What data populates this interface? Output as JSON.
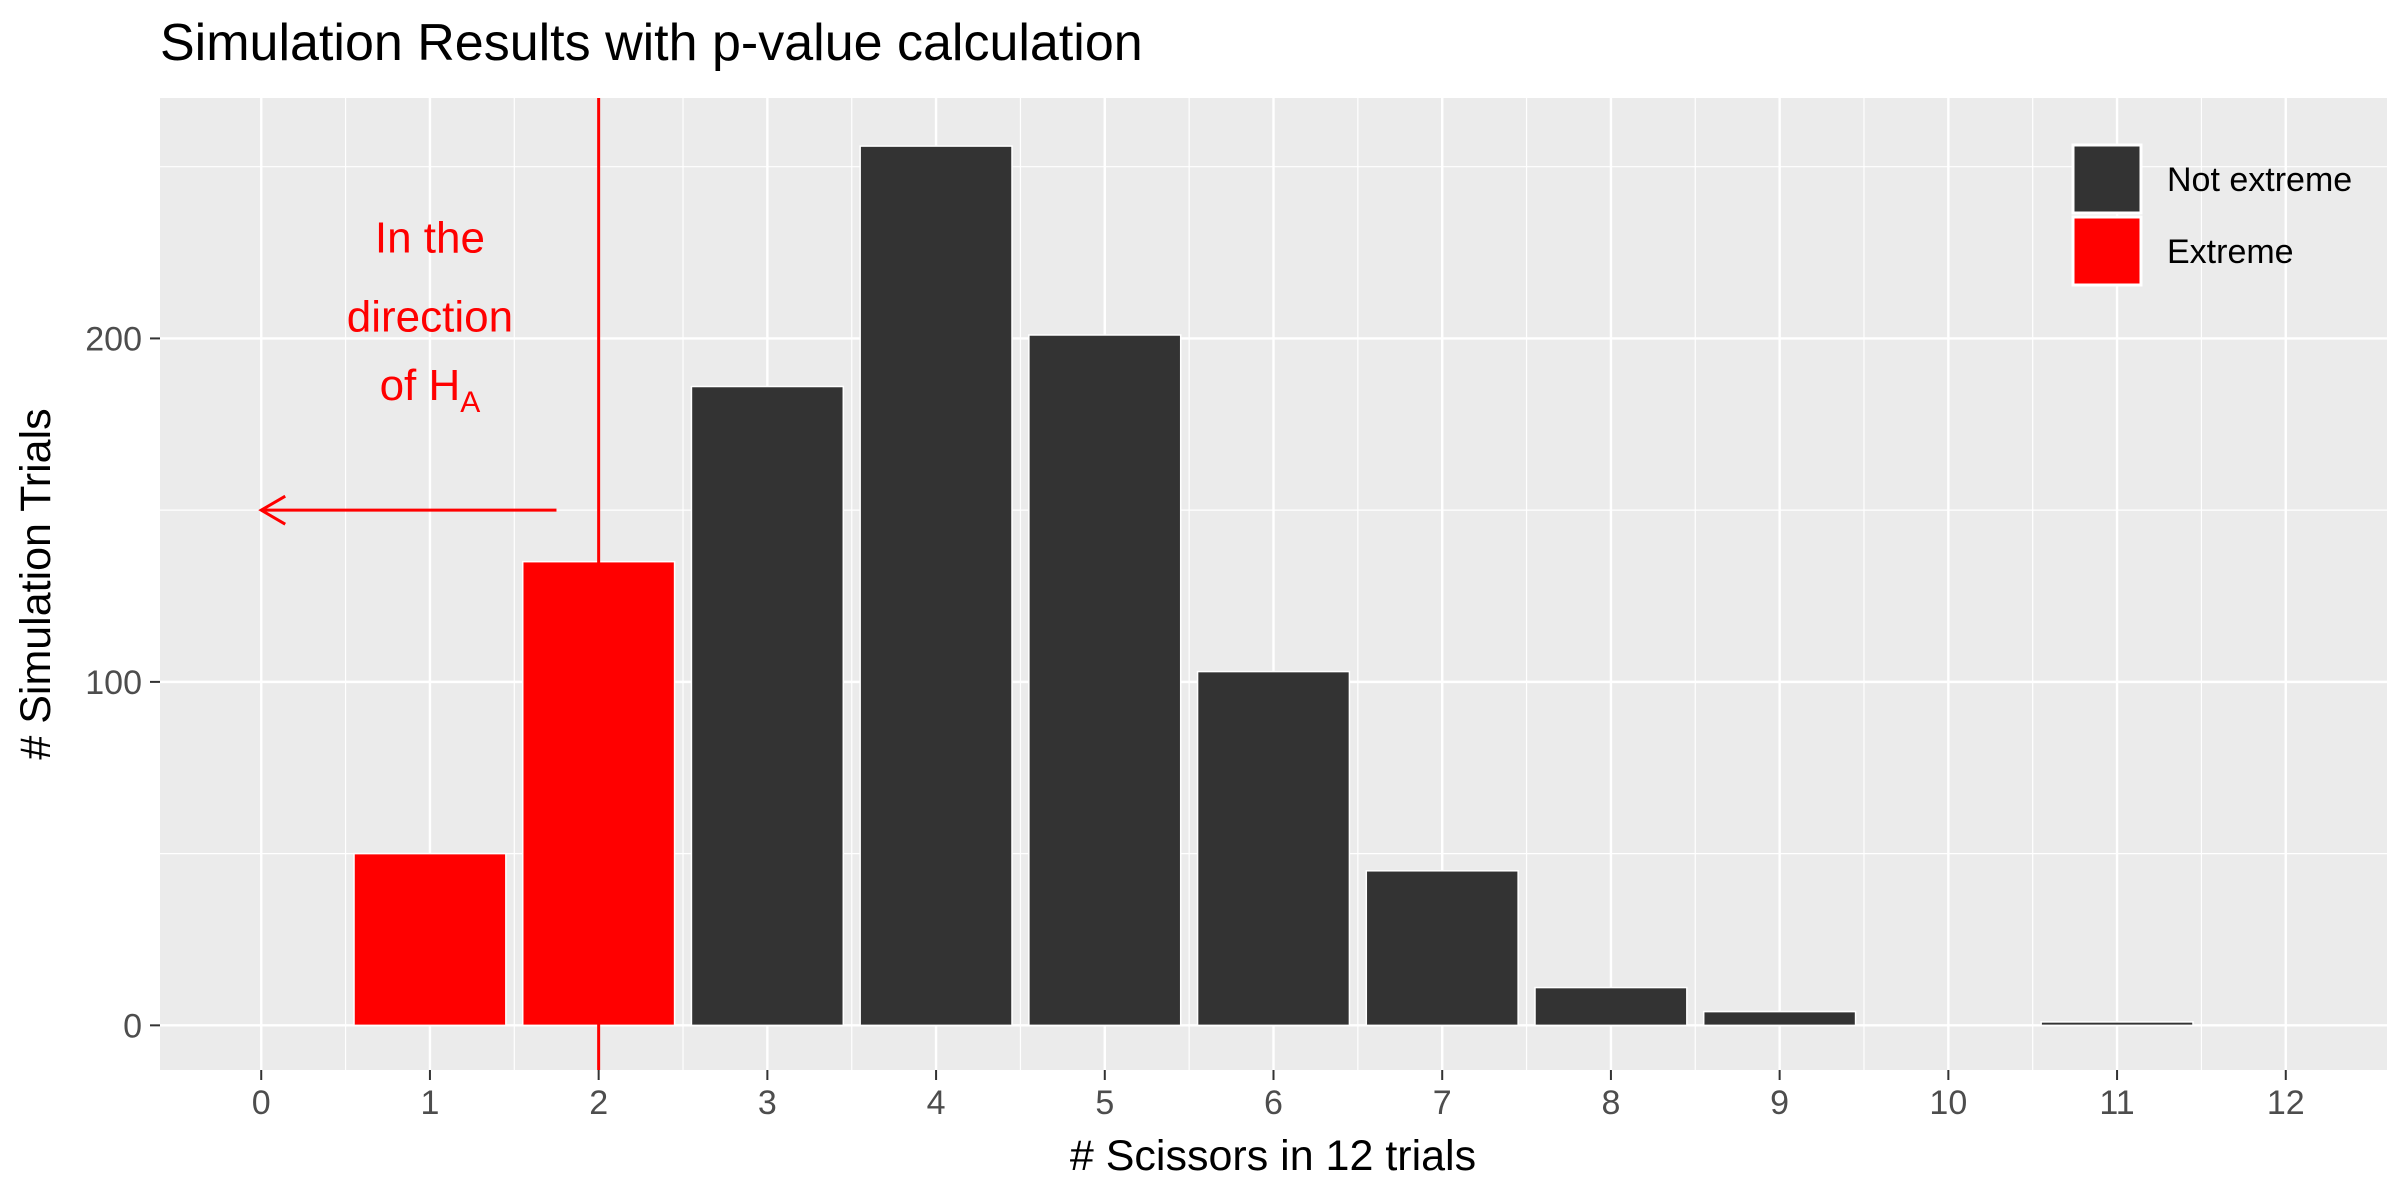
{
  "colors": {
    "panel_bg": "#ebebeb",
    "grid": "#ffffff",
    "not_extreme": "#333333",
    "extreme": "#ff0000",
    "annotation": "#ff0000"
  },
  "chart_data": {
    "type": "bar",
    "title": "Simulation Results with p-value calculation",
    "xlabel": "# Scissors in 12 trials",
    "ylabel": "# Simulation Trials",
    "x": [
      0,
      1,
      2,
      3,
      4,
      5,
      6,
      7,
      8,
      9,
      10,
      11,
      12
    ],
    "x_tick_labels": [
      "0",
      "1",
      "2",
      "3",
      "4",
      "5",
      "6",
      "7",
      "8",
      "9",
      "10",
      "11",
      "12"
    ],
    "values": [
      0,
      50,
      135,
      186,
      256,
      201,
      103,
      45,
      11,
      4,
      0,
      1,
      0
    ],
    "group": [
      "Not extreme",
      "Extreme",
      "Extreme",
      "Not extreme",
      "Not extreme",
      "Not extreme",
      "Not extreme",
      "Not extreme",
      "Not extreme",
      "Not extreme",
      "Not extreme",
      "Not extreme",
      "Not extreme"
    ],
    "xlim": [
      -0.6,
      12.6
    ],
    "ylim": [
      -13,
      270
    ],
    "y_ticks": [
      0,
      100,
      200
    ],
    "y_tick_labels": [
      "0",
      "100",
      "200"
    ],
    "grid": true,
    "legend": {
      "position": "top-right",
      "entries": [
        {
          "label": "Not extreme",
          "color": "#333333"
        },
        {
          "label": "Extreme",
          "color": "#ff0000"
        }
      ]
    },
    "annotations": {
      "vline_x": 2,
      "arrow": {
        "from_x": 1.75,
        "to_x": 0,
        "y": 150
      },
      "text_x": 1,
      "text_line1": "In  the",
      "text_line2": "direction",
      "text_line3_main": "of  H",
      "text_line3_sub": "A",
      "text_y_line1": 225,
      "text_y_line2": 202,
      "text_y_line3": 182
    }
  }
}
